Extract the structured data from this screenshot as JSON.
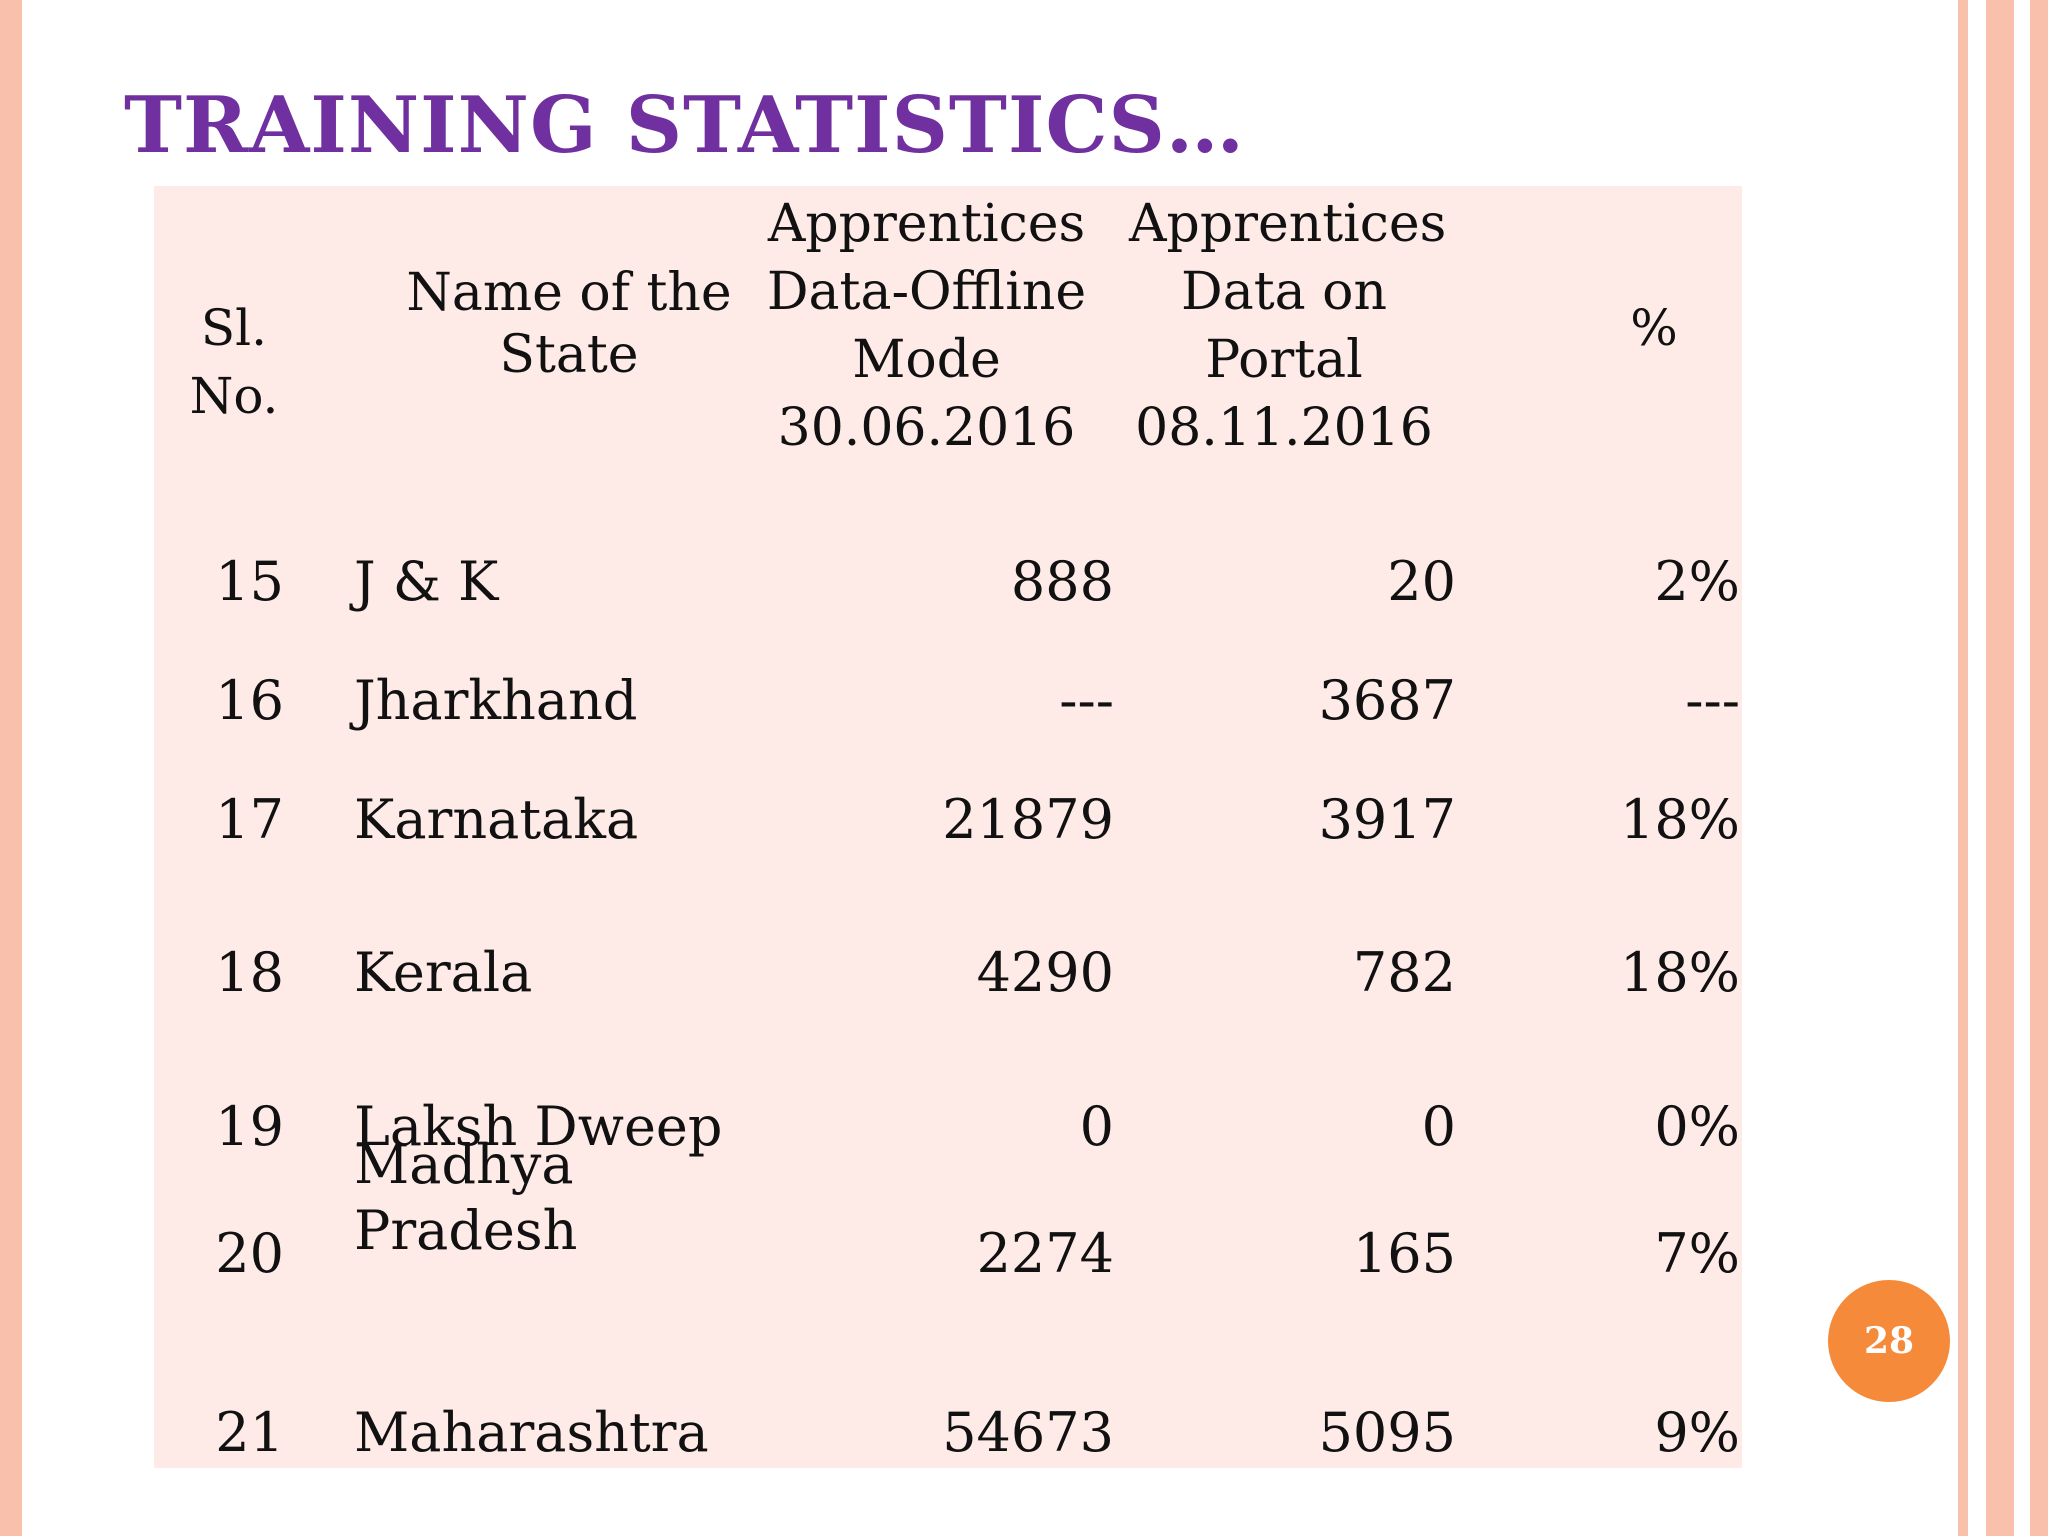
{
  "slide": {
    "title": "TRAINING STATISTICS…",
    "page_number": "28",
    "colors": {
      "title": "#7030a0",
      "table_bg": "#feebe8",
      "border": "#f9c1ac",
      "badge": "#f58a3b"
    }
  },
  "table": {
    "headers": {
      "sl_no": "Sl. No.",
      "state": "Name of the State",
      "offline": "Apprentices Data-Offline Mode 30.06.2016",
      "portal": "Apprentices Data on Portal 08.11.2016",
      "pct": "%"
    },
    "rows": [
      {
        "sl": "15",
        "state": "J & K",
        "offline": "888",
        "portal": "20",
        "pct": "2%"
      },
      {
        "sl": "16",
        "state": "Jharkhand",
        "offline": "---",
        "portal": "3687",
        "pct": "---"
      },
      {
        "sl": "17",
        "state": "Karnataka",
        "offline": "21879",
        "portal": "3917",
        "pct": "18%"
      },
      {
        "sl": "18",
        "state": "Kerala",
        "offline": "4290",
        "portal": "782",
        "pct": "18%"
      },
      {
        "sl": "19",
        "state": "Laksh Dweep",
        "offline": "0",
        "portal": "0",
        "pct": "0%"
      },
      {
        "sl": "20",
        "state": "Madhya Pradesh",
        "offline": "2274",
        "portal": "165",
        "pct": "7%"
      },
      {
        "sl": "21",
        "state": "Maharashtra",
        "offline": "54673",
        "portal": "5095",
        "pct": "9%"
      }
    ]
  }
}
